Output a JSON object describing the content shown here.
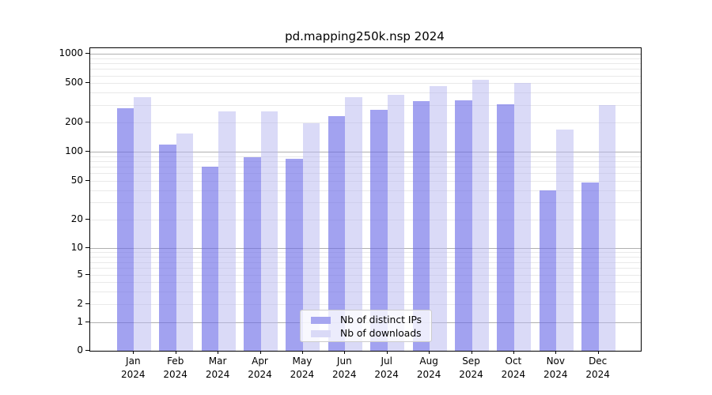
{
  "chart_data": {
    "type": "bar",
    "title": "pd.mapping250k.nsp 2024",
    "x_months": [
      "Jan",
      "Feb",
      "Mar",
      "Apr",
      "May",
      "Jun",
      "Jul",
      "Aug",
      "Sep",
      "Oct",
      "Nov",
      "Dec"
    ],
    "x_year": "2024",
    "categories": [
      "Jan 2024",
      "Feb 2024",
      "Mar 2024",
      "Apr 2024",
      "May 2024",
      "Jun 2024",
      "Jul 2024",
      "Aug 2024",
      "Sep 2024",
      "Oct 2024",
      "Nov 2024",
      "Dec 2024"
    ],
    "series": [
      {
        "name": "Nb of distinct IPs",
        "values": [
          280,
          118,
          70,
          88,
          85,
          230,
          270,
          330,
          335,
          305,
          40,
          48
        ],
        "bar_color": "rgba(105,105,230,0.62)",
        "swatch_color": "#a6a6f0"
      },
      {
        "name": "Nb of downloads",
        "values": [
          360,
          155,
          260,
          260,
          195,
          360,
          385,
          470,
          540,
          500,
          170,
          300
        ],
        "bar_color": "rgba(185,185,240,0.52)",
        "swatch_color": "#dadaf7"
      }
    ],
    "yscale": "symlog",
    "yticks": [
      0,
      1,
      2,
      5,
      10,
      20,
      50,
      100,
      200,
      500,
      1000
    ],
    "ytick_labels": [
      "0",
      "1",
      "2",
      "5",
      "10",
      "20",
      "50",
      "100",
      "200",
      "500",
      "1000"
    ],
    "ylim": [
      0,
      1150
    ],
    "grid": true,
    "grid_major_color": "#b0b0b0",
    "grid_minor_color": "#e9e9e9",
    "legend_position": "lower center",
    "xlabel": "",
    "ylabel": ""
  }
}
